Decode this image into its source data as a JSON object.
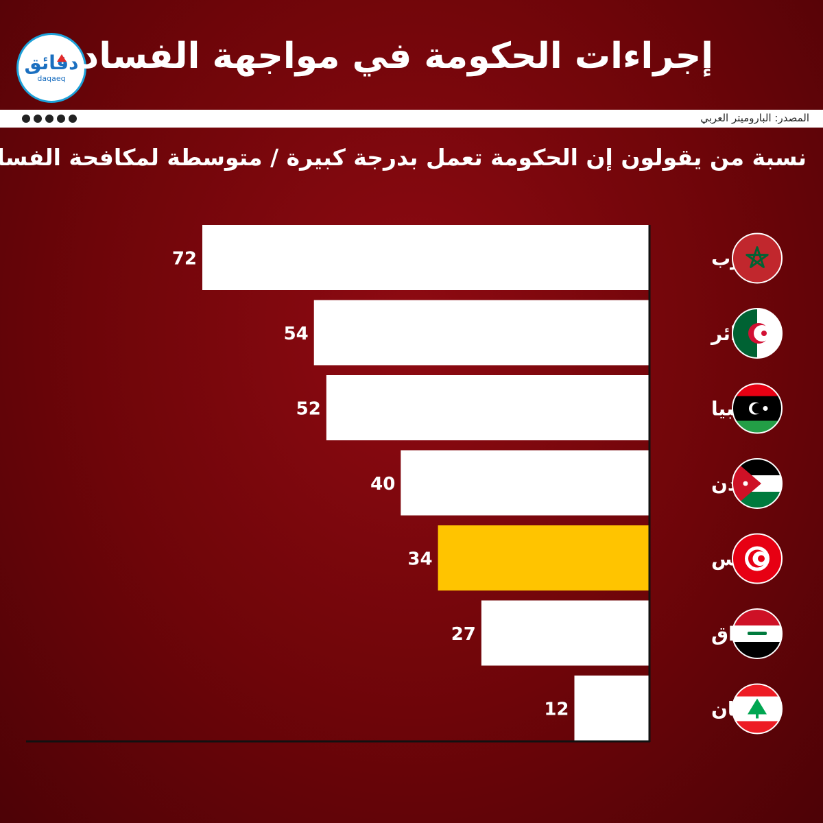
{
  "title": "إجراءات الحكومة في مواجهة الفساد",
  "logo": {
    "text_ar": "دقائق",
    "text_en": "daqaeq"
  },
  "source": "المصدر: الباروميتر العربي",
  "social_icons": [
    "facebook-icon",
    "instagram-icon",
    "youtube-icon",
    "twitter-icon",
    "telegram-icon"
  ],
  "colors": {
    "background": "#7a0610",
    "bar": "#ffffff",
    "highlight": "#ffc400",
    "text": "#ffffff"
  },
  "chart_data": {
    "type": "bar",
    "orientation": "horizontal",
    "title": "نسبة من يقولون إن الحكومة تعمل بدرجة كبيرة / متوسطة لمكافحة الفساد",
    "categories": [
      "المغرب",
      "الجزائر",
      "ليبيا",
      "الأردن",
      "تونس",
      "العراق",
      "لبنان"
    ],
    "values": [
      72,
      54,
      52,
      40,
      34,
      27,
      12
    ],
    "value_labels": [
      "72",
      "54",
      "52",
      "40",
      "34",
      "27",
      "12"
    ],
    "highlight_category": "تونس",
    "flags": [
      "morocco-flag-icon",
      "algeria-flag-icon",
      "libya-flag-icon",
      "jordan-flag-icon",
      "tunisia-flag-icon",
      "iraq-flag-icon",
      "lebanon-flag-icon"
    ],
    "xlim": [
      0,
      72
    ],
    "grid": false,
    "legend": "none"
  }
}
